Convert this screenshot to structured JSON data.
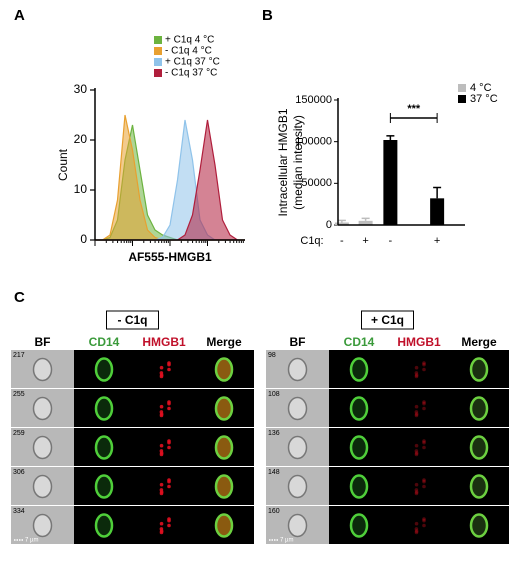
{
  "chart_data": [
    {
      "type": "area",
      "panel": "A",
      "xlabel": "AF555-HMGB1",
      "ylabel": "Count",
      "xlim": [
        0,
        100
      ],
      "ylim": [
        0,
        30
      ],
      "yticks": [
        0,
        10,
        20,
        30
      ],
      "x": [
        0,
        5,
        10,
        15,
        20,
        25,
        30,
        35,
        40,
        45,
        50,
        55,
        60,
        65,
        70,
        75,
        80,
        85,
        90,
        95,
        100
      ],
      "series": [
        {
          "name": "+ C1q 4 °C",
          "color": "#6cb33f",
          "values": [
            0,
            0,
            0.5,
            4,
            16,
            23,
            14,
            5,
            2,
            1,
            0.5,
            0,
            0,
            0,
            0,
            0,
            0,
            0,
            0,
            0,
            0
          ]
        },
        {
          "name": "- C1q 4 °C",
          "color": "#e8a030",
          "values": [
            0,
            0,
            1,
            8,
            25,
            18,
            8,
            2,
            0.5,
            0,
            0,
            0,
            0,
            0,
            0,
            0,
            0,
            0,
            0,
            0,
            0
          ]
        },
        {
          "name": "+ C1q 37 °C",
          "color": "#8fc3ea",
          "values": [
            0,
            0,
            0,
            0,
            0,
            0,
            0,
            0,
            0,
            0.5,
            3,
            12,
            24,
            16,
            4,
            1,
            0,
            0,
            0,
            0,
            0
          ]
        },
        {
          "name": "- C1q 37 °C",
          "color": "#b01e3c",
          "values": [
            0,
            0,
            0,
            0,
            0,
            0,
            0,
            0,
            0,
            0,
            0,
            0,
            1,
            5,
            14,
            24,
            15,
            4,
            1,
            0,
            0
          ]
        }
      ],
      "legend": "upper right"
    },
    {
      "type": "bar",
      "panel": "B",
      "ylabel": [
        "Intracellular HMGB1",
        "(median intensity)"
      ],
      "category_label": "C1q:",
      "categories": [
        "-",
        "+",
        "-",
        "+"
      ],
      "ylim": [
        0,
        150000
      ],
      "yticks": [
        0,
        50000,
        100000,
        150000
      ],
      "series": [
        {
          "name": "4 °C",
          "color": "#bdbdbd",
          "values": [
            3000,
            5000,
            null,
            null
          ],
          "errors": [
            2500,
            3000,
            null,
            null
          ]
        },
        {
          "name": "37 °C",
          "color": "#000000",
          "values": [
            null,
            null,
            102000,
            32000
          ],
          "errors": [
            null,
            null,
            5000,
            13000
          ]
        }
      ],
      "annotation": "***",
      "legend": "upper right"
    }
  ],
  "imaging": {
    "panel": "C",
    "scale": "7 µm",
    "groups": [
      {
        "title": "- C1q",
        "columns": [
          "BF",
          "CD14",
          "HMGB1",
          "Merge"
        ],
        "rows": [
          "217",
          "255",
          "259",
          "306",
          "334"
        ]
      },
      {
        "title": "+ C1q",
        "columns": [
          "BF",
          "CD14",
          "HMGB1",
          "Merge"
        ],
        "rows": [
          "98",
          "108",
          "136",
          "148",
          "160"
        ]
      }
    ]
  }
}
